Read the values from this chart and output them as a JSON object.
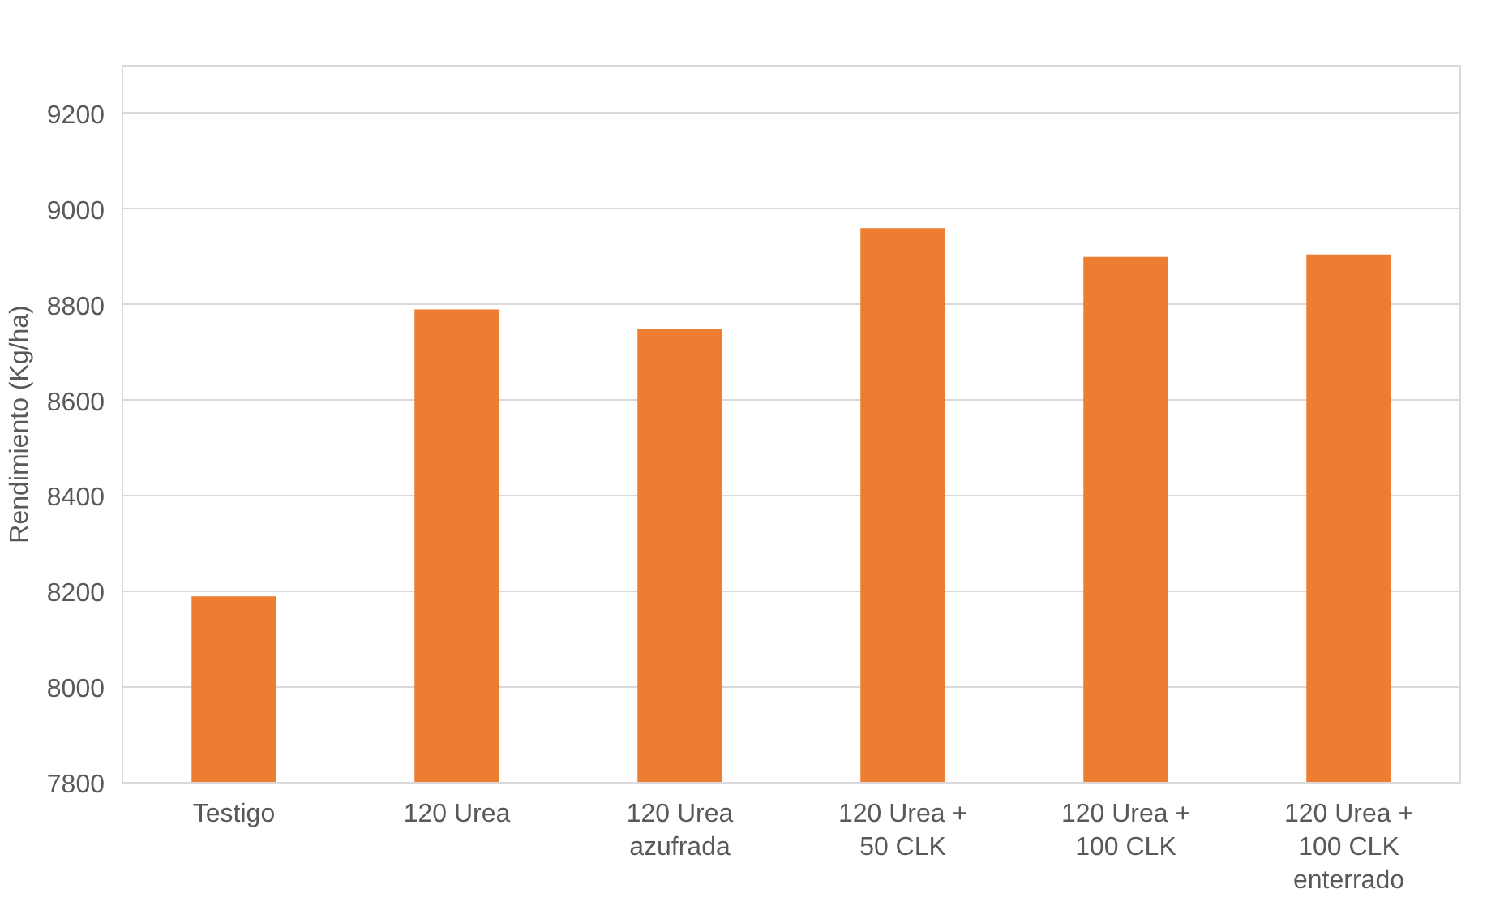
{
  "chart_data": {
    "type": "bar",
    "categories": [
      "Testigo",
      "120 Urea",
      "120 Urea azufrada",
      "120 Urea + 50 CLK",
      "120 Urea + 100 CLK",
      "120 Urea + 100 CLK enterrado"
    ],
    "values": [
      8190,
      8790,
      8750,
      8960,
      8900,
      8905
    ],
    "color": "#ed7d31",
    "ylabel": "Rendimiento (Kg/ha)",
    "ylim": [
      7800,
      9300
    ],
    "yticks": [
      7800,
      8000,
      8200,
      8400,
      8600,
      8800,
      9000,
      9200
    ],
    "grid": "y"
  }
}
